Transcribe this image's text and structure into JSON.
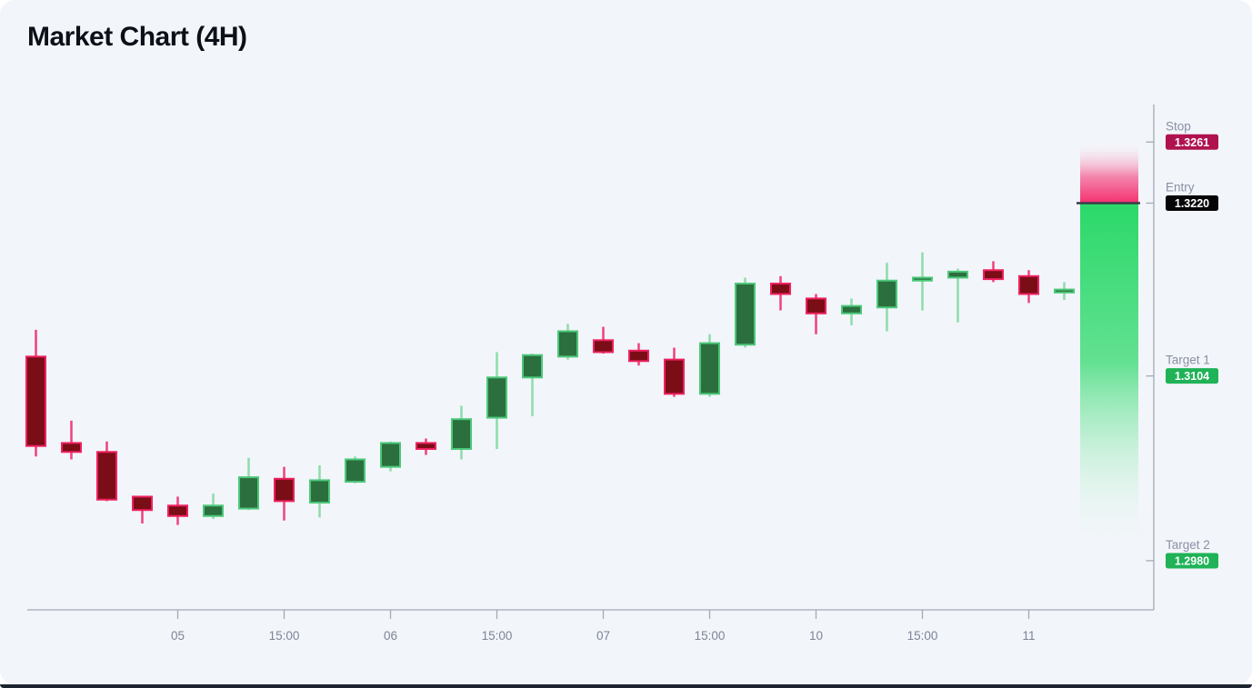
{
  "title": "Market Chart (4H)",
  "colors": {
    "page_bg": "#ffffff",
    "card_bg": "#f2f5fa",
    "title_text": "#0c1018",
    "axis_line": "#a3a9b6",
    "x_tick_label": "#7d8496",
    "level_label": "#8a90a4",
    "badge_text": "#ffffff",
    "bull_fill": "#2b6f3e",
    "bull_stroke": "#4cc87a",
    "bull_wick": "#8edcab",
    "bear_fill": "#7a0d16",
    "bear_stroke": "#ee2160",
    "bear_wick": "#f0417c",
    "zone_pink": "#f43070",
    "zone_pink_fade": "#ffffff",
    "zone_green": "#2bd969",
    "zone_green_fade": "#ffffff",
    "entry_line": "#383d49",
    "stop_badge_bg": "#b01250",
    "entry_badge_bg": "#050507",
    "target_badge_bg": "#1fb257"
  },
  "chart_data": {
    "type": "candlestick",
    "title": "Market Chart (4H)",
    "timeframe": "4H",
    "x_tick_labels": [
      "05",
      "15:00",
      "06",
      "15:00",
      "07",
      "15:00",
      "10",
      "15:00",
      "11"
    ],
    "x_tick_candle_indices": [
      4,
      7,
      10,
      13,
      16,
      19,
      22,
      25,
      28
    ],
    "y_range_visible": [
      1.2947,
      1.3286
    ],
    "grid": false,
    "candles": [
      {
        "o": 1.3117,
        "h": 1.3135,
        "l": 1.305,
        "c": 1.3057
      },
      {
        "o": 1.3059,
        "h": 1.3074,
        "l": 1.3048,
        "c": 1.3053
      },
      {
        "o": 1.3053,
        "h": 1.306,
        "l": 1.302,
        "c": 1.3021
      },
      {
        "o": 1.3023,
        "h": 1.3023,
        "l": 1.3005,
        "c": 1.3014
      },
      {
        "o": 1.3017,
        "h": 1.3023,
        "l": 1.3004,
        "c": 1.301
      },
      {
        "o": 1.301,
        "h": 1.3025,
        "l": 1.3008,
        "c": 1.3017
      },
      {
        "o": 1.3015,
        "h": 1.3049,
        "l": 1.3014,
        "c": 1.3036
      },
      {
        "o": 1.3035,
        "h": 1.3043,
        "l": 1.3007,
        "c": 1.302
      },
      {
        "o": 1.3019,
        "h": 1.3044,
        "l": 1.3009,
        "c": 1.3034
      },
      {
        "o": 1.3033,
        "h": 1.305,
        "l": 1.3032,
        "c": 1.3048
      },
      {
        "o": 1.3043,
        "h": 1.306,
        "l": 1.304,
        "c": 1.3059
      },
      {
        "o": 1.3059,
        "h": 1.3062,
        "l": 1.3051,
        "c": 1.3055
      },
      {
        "o": 1.3055,
        "h": 1.3084,
        "l": 1.3048,
        "c": 1.3075
      },
      {
        "o": 1.3076,
        "h": 1.312,
        "l": 1.3055,
        "c": 1.3103
      },
      {
        "o": 1.3103,
        "h": 1.3119,
        "l": 1.3077,
        "c": 1.3118
      },
      {
        "o": 1.3117,
        "h": 1.3139,
        "l": 1.3115,
        "c": 1.3134
      },
      {
        "o": 1.3128,
        "h": 1.3137,
        "l": 1.3119,
        "c": 1.312
      },
      {
        "o": 1.3121,
        "h": 1.3126,
        "l": 1.3111,
        "c": 1.3114
      },
      {
        "o": 1.3115,
        "h": 1.3123,
        "l": 1.309,
        "c": 1.3092
      },
      {
        "o": 1.3092,
        "h": 1.3132,
        "l": 1.309,
        "c": 1.3126
      },
      {
        "o": 1.3125,
        "h": 1.317,
        "l": 1.3123,
        "c": 1.3166
      },
      {
        "o": 1.3166,
        "h": 1.3171,
        "l": 1.3148,
        "c": 1.3159
      },
      {
        "o": 1.3156,
        "h": 1.3159,
        "l": 1.3132,
        "c": 1.3146
      },
      {
        "o": 1.3146,
        "h": 1.3156,
        "l": 1.3138,
        "c": 1.3151
      },
      {
        "o": 1.315,
        "h": 1.318,
        "l": 1.3134,
        "c": 1.3168
      },
      {
        "o": 1.3168,
        "h": 1.3187,
        "l": 1.3148,
        "c": 1.317
      },
      {
        "o": 1.317,
        "h": 1.3176,
        "l": 1.314,
        "c": 1.3174
      },
      {
        "o": 1.3175,
        "h": 1.3181,
        "l": 1.3167,
        "c": 1.3169
      },
      {
        "o": 1.3171,
        "h": 1.3175,
        "l": 1.3153,
        "c": 1.3159
      },
      {
        "o": 1.316,
        "h": 1.3167,
        "l": 1.3155,
        "c": 1.3162
      }
    ],
    "levels": [
      {
        "id": "stop",
        "label": "Stop",
        "value": "1.3261",
        "price": 1.3261,
        "badge": "stop_badge_bg"
      },
      {
        "id": "entry",
        "label": "Entry",
        "value": "1.3220",
        "price": 1.322,
        "badge": "entry_badge_bg"
      },
      {
        "id": "target1",
        "label": "Target 1",
        "value": "1.3104",
        "price": 1.3104,
        "badge": "target_badge_bg"
      },
      {
        "id": "target2",
        "label": "Target 2",
        "value": "1.2980",
        "price": 1.298,
        "badge": "target_badge_bg"
      }
    ],
    "zones": [
      {
        "id": "risk-zone",
        "from": "stop",
        "to": "entry",
        "color": "zone_pink",
        "fade_from_top": true
      },
      {
        "id": "reward-zone",
        "from": "entry",
        "to": "target2",
        "color": "zone_green",
        "fade_to_bottom": true
      }
    ],
    "legend": null
  }
}
